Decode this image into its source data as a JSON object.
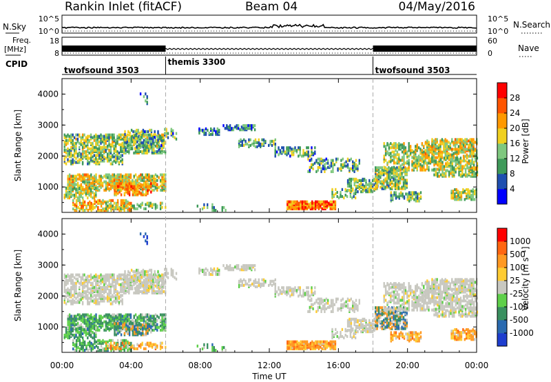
{
  "header": {
    "station": "Rankin Inlet (fitACF)",
    "beam": "Beam 04",
    "date": "04/May/2016"
  },
  "strips": {
    "nsky_label": "N.Sky",
    "nsearch_label": "N.Search",
    "nsky_ticks": [
      "10^5",
      "10^0"
    ],
    "nsearch_ticks": [
      "10^5",
      "10^0"
    ],
    "freq_label_top": "Freq.",
    "freq_label_bottom": "[MHz]",
    "freq_ticks": [
      "18",
      "8"
    ],
    "nave_label": "Nave",
    "nave_ticks": [
      "60",
      "0"
    ],
    "cpid_label": "CPID"
  },
  "cpid_segments": [
    {
      "label": "twofsound 3503",
      "start_hour": 0
    },
    {
      "label": "themis 3300",
      "start_hour": 6
    },
    {
      "label": "twofsound 3503",
      "start_hour": 18
    }
  ],
  "chart_data": [
    {
      "type": "heatmap",
      "quantity": "Power",
      "ylabel": "Slant Range [km]",
      "xlabel": "",
      "xlim_hours": [
        0,
        24
      ],
      "ylim_km": [
        180,
        4500
      ],
      "yticks": [
        "1000",
        "2000",
        "3000",
        "4000"
      ],
      "colorbar": {
        "label": "Power [dB]",
        "ticks": [
          "4",
          "8",
          "12",
          "16",
          "20",
          "24",
          "28"
        ],
        "colors": [
          "#0000ff",
          "#1f4fb0",
          "#3f9a5a",
          "#7fc87f",
          "#f0d020",
          "#ff9900",
          "#ff5500",
          "#ff0000"
        ]
      }
    },
    {
      "type": "heatmap",
      "quantity": "Velocity",
      "ylabel": "Slant Range [km]",
      "xlabel": "Time UT",
      "xlim_hours": [
        0,
        24
      ],
      "ylim_km": [
        180,
        4500
      ],
      "yticks": [
        "1000",
        "2000",
        "3000",
        "4000"
      ],
      "xticks": [
        "00:00",
        "04:00",
        "08:00",
        "12:00",
        "16:00",
        "20:00",
        "00:00"
      ],
      "colorbar": {
        "label": "Velocity [m s⁻¹]",
        "ticks": [
          "1000",
          "500",
          "100",
          "25",
          "-25",
          "-100",
          "-500",
          "-1000"
        ],
        "colors": [
          "#1e3ecf",
          "#2a6ab0",
          "#3a9060",
          "#5fd04a",
          "#c8c8c0",
          "#ffcc33",
          "#ff9922",
          "#ff6611",
          "#ff0000"
        ]
      }
    }
  ]
}
